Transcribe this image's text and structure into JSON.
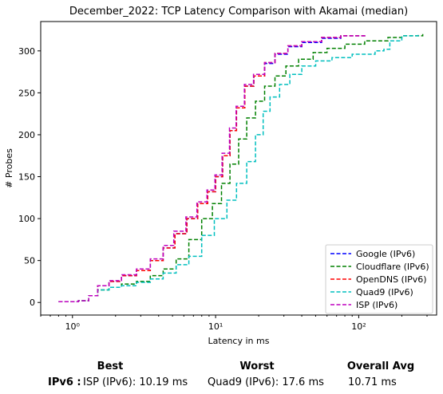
{
  "chart_data": {
    "type": "line",
    "title": "December_2022: TCP Latency Comparison with Akamai (median)",
    "xlabel": "Latency in ms",
    "ylabel": "# Probes",
    "xscale": "log",
    "xlim": [
      0.6,
      350
    ],
    "ylim": [
      -15,
      335
    ],
    "xticks": [
      1,
      10,
      100
    ],
    "xtick_labels": [
      "10⁰",
      "10¹",
      "10²"
    ],
    "yticks": [
      0,
      50,
      100,
      150,
      200,
      250,
      300
    ],
    "grid": false,
    "legend_position": "lower-right",
    "series": [
      {
        "name": "Google (IPv6)",
        "color": "#0000ff",
        "x": [
          0.8,
          1.1,
          1.3,
          1.5,
          1.8,
          2.2,
          2.8,
          3.5,
          4.3,
          5.2,
          6.3,
          7.5,
          8.8,
          10.0,
          11.2,
          12.6,
          14.0,
          16.0,
          18.5,
          22.0,
          26.0,
          32.0,
          40.0,
          55.0,
          75.0,
          110.0
        ],
        "y": [
          1,
          2,
          8,
          20,
          25,
          32,
          38,
          50,
          65,
          82,
          100,
          118,
          132,
          150,
          175,
          205,
          232,
          258,
          270,
          285,
          296,
          305,
          310,
          315,
          318,
          320
        ]
      },
      {
        "name": "Cloudflare (IPv6)",
        "color": "#008000",
        "x": [
          0.8,
          1.1,
          1.3,
          1.5,
          1.8,
          2.2,
          2.8,
          3.5,
          4.3,
          5.3,
          6.5,
          8.0,
          9.5,
          11.0,
          12.6,
          14.5,
          16.5,
          19.0,
          22.0,
          26.0,
          31.0,
          38.0,
          48.0,
          60.0,
          80.0,
          110.0,
          160.0,
          200.0,
          280.0
        ],
        "y": [
          1,
          2,
          8,
          15,
          18,
          22,
          25,
          32,
          40,
          52,
          75,
          100,
          118,
          142,
          165,
          195,
          220,
          240,
          258,
          270,
          282,
          290,
          298,
          303,
          308,
          312,
          316,
          318,
          320
        ]
      },
      {
        "name": "OpenDNS (IPv6)",
        "color": "#ff0000",
        "x": [
          0.8,
          1.1,
          1.3,
          1.5,
          1.8,
          2.2,
          2.8,
          3.5,
          4.3,
          5.2,
          6.3,
          7.5,
          8.8,
          10.0,
          11.2,
          12.6,
          14.0,
          16.0,
          18.5,
          22.0,
          26.0,
          32.0,
          40.0,
          55.0,
          75.0,
          110.0
        ],
        "y": [
          1,
          2,
          8,
          20,
          25,
          32,
          38,
          50,
          65,
          82,
          100,
          118,
          132,
          150,
          175,
          205,
          232,
          258,
          270,
          286,
          297,
          306,
          311,
          316,
          318,
          320
        ]
      },
      {
        "name": "Quad9 (IPv6)",
        "color": "#00bfbf",
        "x": [
          0.8,
          1.1,
          1.3,
          1.5,
          1.8,
          2.2,
          2.8,
          3.5,
          4.3,
          5.3,
          6.5,
          8.0,
          9.8,
          12.0,
          14.0,
          16.5,
          19.0,
          21.5,
          24.0,
          28.0,
          33.0,
          40.0,
          50.0,
          65.0,
          90.0,
          130.0,
          150.0,
          165.0,
          200.0,
          260.0
        ],
        "y": [
          1,
          2,
          8,
          15,
          18,
          20,
          24,
          28,
          35,
          45,
          55,
          80,
          100,
          122,
          142,
          168,
          200,
          228,
          245,
          260,
          272,
          282,
          288,
          292,
          296,
          300,
          302,
          312,
          318,
          320
        ]
      },
      {
        "name": "ISP (IPv6)",
        "color": "#bf00bf",
        "x": [
          0.8,
          1.1,
          1.3,
          1.5,
          1.8,
          2.2,
          2.8,
          3.5,
          4.3,
          5.1,
          6.2,
          7.4,
          8.7,
          9.9,
          11.1,
          12.5,
          13.9,
          15.9,
          18.4,
          22.0,
          26.0,
          32.0,
          40.0,
          55.0,
          75.0,
          110.0
        ],
        "y": [
          1,
          2,
          8,
          20,
          26,
          33,
          40,
          52,
          68,
          85,
          102,
          120,
          134,
          152,
          178,
          208,
          234,
          260,
          272,
          286,
          297,
          306,
          311,
          316,
          318,
          320
        ]
      }
    ]
  },
  "summary": {
    "best_header": "Best",
    "worst_header": "Worst",
    "avg_header": "Overall Avg",
    "protocol_label": "IPv6 :",
    "best_value": "ISP (IPv6): 10.19 ms",
    "worst_value": "Quad9 (IPv6): 17.6 ms",
    "avg_value": "10.71 ms"
  }
}
